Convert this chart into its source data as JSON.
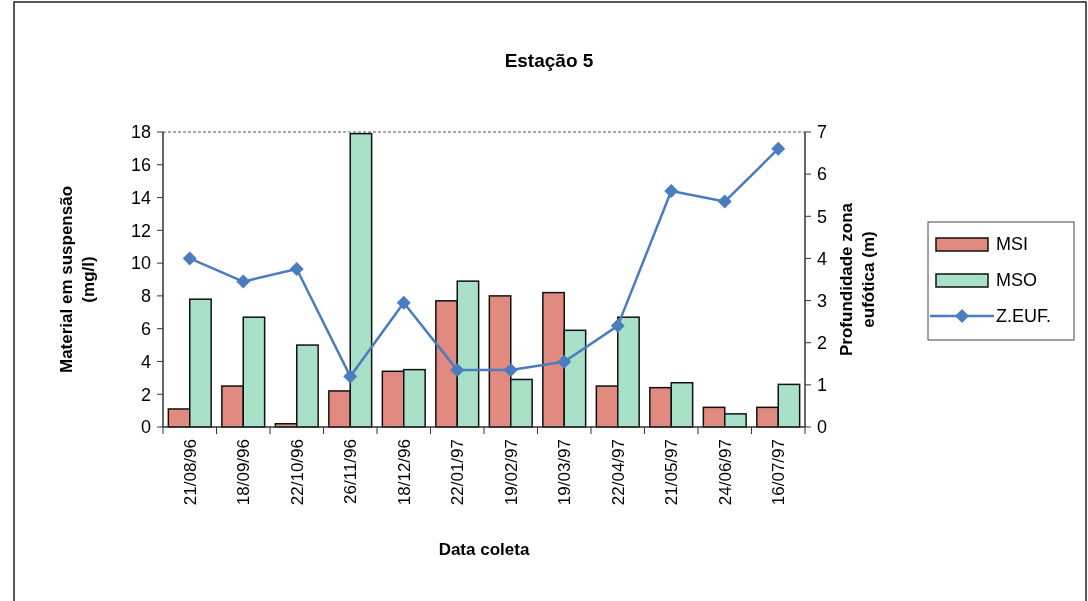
{
  "chart_data": {
    "type": "bar",
    "title": "Estação 5",
    "xlabel": "Data coleta",
    "ylabel": "Material em suspensão (mg/l)",
    "y2label": "Profundidade zona eufótica (m)",
    "categories": [
      "21/08/96",
      "18/09/96",
      "22/10/96",
      "26/11/96",
      "18/12/96",
      "22/01/97",
      "19/02/97",
      "19/03/97",
      "22/04/97",
      "21/05/97",
      "24/06/97",
      "16/07/97"
    ],
    "series": [
      {
        "name": "MSI",
        "color": "#e08a80",
        "values": [
          1.1,
          2.5,
          0.2,
          2.2,
          3.4,
          7.7,
          8.0,
          8.2,
          2.5,
          2.4,
          1.2,
          1.2
        ]
      },
      {
        "name": "MSO",
        "color": "#a8e0c8",
        "values": [
          7.8,
          6.7,
          5.0,
          17.9,
          3.5,
          8.9,
          2.9,
          5.9,
          6.7,
          2.7,
          0.8,
          2.6
        ]
      },
      {
        "name": "Z.EUF.",
        "type": "line",
        "axis": "y2",
        "color": "#4a7cc0",
        "marker": "diamond",
        "values": [
          4.0,
          3.45,
          3.75,
          1.2,
          2.95,
          1.35,
          1.35,
          1.55,
          2.4,
          5.6,
          5.35,
          6.6
        ]
      }
    ],
    "ylim": [
      0,
      18
    ],
    "yticks": [
      0,
      2,
      4,
      6,
      8,
      10,
      12,
      14,
      16,
      18
    ],
    "y2lim": [
      0,
      7
    ],
    "y2ticks": [
      0,
      1,
      2,
      3,
      4,
      5,
      6,
      7
    ],
    "legend": "right"
  }
}
